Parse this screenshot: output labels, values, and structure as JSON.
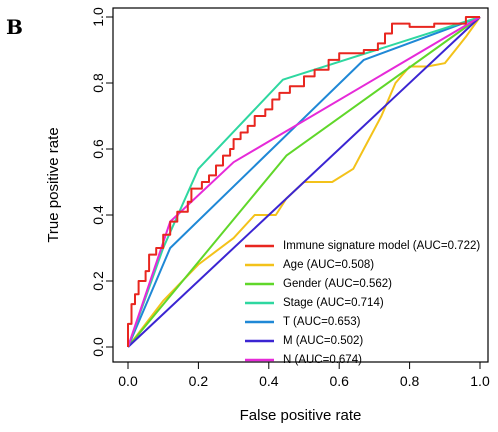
{
  "panel_label": "B",
  "chart_data": {
    "type": "line",
    "title": "",
    "xlabel": "False positive rate",
    "ylabel": "True positive rate",
    "xlim": [
      0,
      1
    ],
    "ylim": [
      0,
      1
    ],
    "x_ticks": [
      "0.0",
      "0.2",
      "0.4",
      "0.6",
      "0.8",
      "1.0"
    ],
    "y_ticks": [
      "0.0",
      "0.2",
      "0.4",
      "0.6",
      "0.8",
      "1.0"
    ],
    "grid": false,
    "legend_position": "bottom-right",
    "series": [
      {
        "name": "Immune signature model (AUC=0.722)",
        "color": "#e8261f",
        "step": true,
        "points": [
          [
            0,
            0
          ],
          [
            0,
            0.07
          ],
          [
            0.01,
            0.07
          ],
          [
            0.01,
            0.13
          ],
          [
            0.02,
            0.13
          ],
          [
            0.02,
            0.16
          ],
          [
            0.03,
            0.16
          ],
          [
            0.03,
            0.2
          ],
          [
            0.05,
            0.2
          ],
          [
            0.05,
            0.23
          ],
          [
            0.06,
            0.23
          ],
          [
            0.06,
            0.28
          ],
          [
            0.08,
            0.28
          ],
          [
            0.08,
            0.3
          ],
          [
            0.1,
            0.3
          ],
          [
            0.1,
            0.34
          ],
          [
            0.12,
            0.34
          ],
          [
            0.12,
            0.38
          ],
          [
            0.14,
            0.38
          ],
          [
            0.14,
            0.41
          ],
          [
            0.17,
            0.41
          ],
          [
            0.17,
            0.44
          ],
          [
            0.18,
            0.44
          ],
          [
            0.18,
            0.48
          ],
          [
            0.21,
            0.48
          ],
          [
            0.21,
            0.5
          ],
          [
            0.23,
            0.5
          ],
          [
            0.23,
            0.52
          ],
          [
            0.25,
            0.52
          ],
          [
            0.25,
            0.55
          ],
          [
            0.27,
            0.55
          ],
          [
            0.27,
            0.58
          ],
          [
            0.29,
            0.58
          ],
          [
            0.29,
            0.6
          ],
          [
            0.3,
            0.6
          ],
          [
            0.3,
            0.63
          ],
          [
            0.32,
            0.63
          ],
          [
            0.32,
            0.65
          ],
          [
            0.34,
            0.65
          ],
          [
            0.34,
            0.67
          ],
          [
            0.36,
            0.67
          ],
          [
            0.36,
            0.7
          ],
          [
            0.39,
            0.7
          ],
          [
            0.39,
            0.72
          ],
          [
            0.41,
            0.72
          ],
          [
            0.41,
            0.75
          ],
          [
            0.43,
            0.75
          ],
          [
            0.43,
            0.77
          ],
          [
            0.46,
            0.77
          ],
          [
            0.46,
            0.79
          ],
          [
            0.5,
            0.79
          ],
          [
            0.5,
            0.82
          ],
          [
            0.53,
            0.82
          ],
          [
            0.53,
            0.84
          ],
          [
            0.57,
            0.84
          ],
          [
            0.57,
            0.87
          ],
          [
            0.6,
            0.87
          ],
          [
            0.6,
            0.89
          ],
          [
            0.67,
            0.89
          ],
          [
            0.67,
            0.9
          ],
          [
            0.71,
            0.9
          ],
          [
            0.71,
            0.92
          ],
          [
            0.73,
            0.92
          ],
          [
            0.73,
            0.95
          ],
          [
            0.75,
            0.95
          ],
          [
            0.75,
            0.98
          ],
          [
            0.8,
            0.98
          ],
          [
            0.8,
            0.97
          ],
          [
            0.87,
            0.97
          ],
          [
            0.87,
            0.98
          ],
          [
            0.9,
            0.98
          ],
          [
            0.9,
            0.98
          ],
          [
            0.96,
            0.98
          ],
          [
            0.96,
            1.0
          ],
          [
            1.0,
            1.0
          ]
        ]
      },
      {
        "name": "Age (AUC=0.508)",
        "color": "#f3c21a",
        "step": false,
        "points": [
          [
            0,
            0
          ],
          [
            0.1,
            0.14
          ],
          [
            0.2,
            0.25
          ],
          [
            0.3,
            0.33
          ],
          [
            0.36,
            0.4
          ],
          [
            0.42,
            0.4
          ],
          [
            0.45,
            0.45
          ],
          [
            0.5,
            0.5
          ],
          [
            0.58,
            0.5
          ],
          [
            0.64,
            0.54
          ],
          [
            0.67,
            0.6
          ],
          [
            0.72,
            0.7
          ],
          [
            0.76,
            0.8
          ],
          [
            0.8,
            0.85
          ],
          [
            0.85,
            0.85
          ],
          [
            0.9,
            0.86
          ],
          [
            0.93,
            0.9
          ],
          [
            0.96,
            0.94
          ],
          [
            1.0,
            1.0
          ]
        ]
      },
      {
        "name": "Gender (AUC=0.562)",
        "color": "#60d72a",
        "step": false,
        "points": [
          [
            0,
            0
          ],
          [
            0.45,
            0.58
          ],
          [
            1.0,
            1.0
          ]
        ]
      },
      {
        "name": "Stage (AUC=0.714)",
        "color": "#2ed7a0",
        "step": false,
        "points": [
          [
            0,
            0
          ],
          [
            0.1,
            0.3
          ],
          [
            0.2,
            0.54
          ],
          [
            0.44,
            0.81
          ],
          [
            1.0,
            1.0
          ]
        ]
      },
      {
        "name": "T (AUC=0.653)",
        "color": "#1f88d6",
        "step": false,
        "points": [
          [
            0,
            0
          ],
          [
            0.12,
            0.3
          ],
          [
            0.67,
            0.87
          ],
          [
            1.0,
            1.0
          ]
        ]
      },
      {
        "name": "M (AUC=0.502)",
        "color": "#3b25d2",
        "step": false,
        "points": [
          [
            0,
            0
          ],
          [
            1.0,
            1.0
          ]
        ]
      },
      {
        "name": "N (AUC=0.674)",
        "color": "#e62ad8",
        "step": false,
        "points": [
          [
            0,
            0
          ],
          [
            0.12,
            0.38
          ],
          [
            0.3,
            0.56
          ],
          [
            1.0,
            1.0
          ]
        ]
      }
    ]
  }
}
